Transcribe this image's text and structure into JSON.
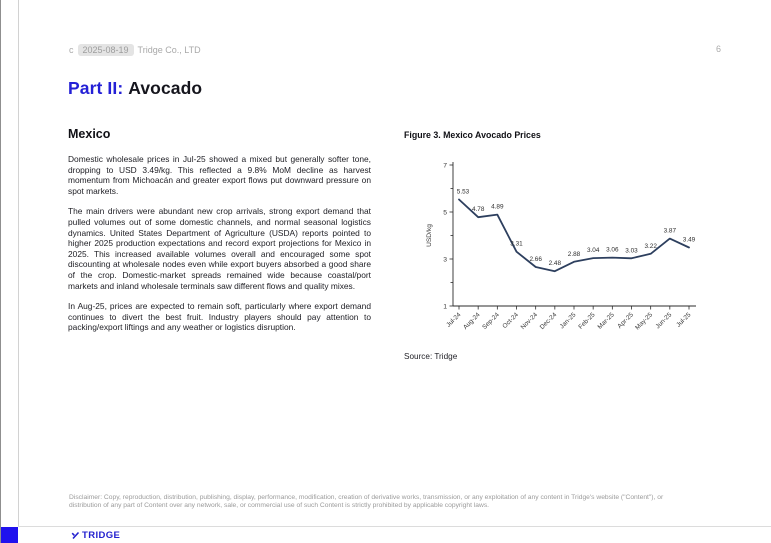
{
  "header": {
    "copyright_prefix": "c",
    "date": "2025-08-19",
    "company": "Tridge Co., LTD",
    "page_number": "6"
  },
  "title": {
    "part": "Part II:",
    "topic": "Avocado"
  },
  "section": {
    "heading": "Mexico",
    "paragraphs": [
      "Domestic wholesale prices in Jul-25 showed a mixed but generally softer tone, dropping to USD 3.49/kg. This reflected a 9.8% MoM decline as harvest momentum from Michoacán and greater export flows put downward pressure on spot markets.",
      "The main drivers were abundant new crop arrivals, strong export demand that pulled volumes out of some domestic channels, and normal seasonal logistics dynamics. United States Department of Agriculture (USDA) reports pointed to higher 2025 production expectations and record export projections for Mexico in 2025. This increased available volumes overall and encouraged some spot discounting at wholesale nodes even while export buyers absorbed a good share of the crop. Domestic-market spreads remained wide because coastal/port markets and inland wholesale terminals saw different flows and quality mixes.",
      "In Aug-25, prices are expected to remain soft, particularly where export demand continues to divert the best fruit. Industry players should pay attention to packing/export liftings and any weather or logistics disruption."
    ]
  },
  "figure": {
    "title": "Figure 3. Mexico Avocado Prices",
    "source": "Source: Tridge"
  },
  "chart_data": {
    "type": "line",
    "title": "Figure 3. Mexico Avocado Prices",
    "categories": [
      "Jul-24",
      "Aug-24",
      "Sep-24",
      "Oct-24",
      "Nov-24",
      "Dec-24",
      "Jan-25",
      "Feb-25",
      "Mar-25",
      "Apr-25",
      "May-25",
      "Jun-25",
      "Jul-25"
    ],
    "values": [
      5.53,
      4.78,
      4.89,
      3.31,
      2.66,
      2.48,
      2.88,
      3.04,
      3.06,
      3.03,
      3.22,
      3.87,
      3.49
    ],
    "xlabel": "",
    "ylabel": "USD/kg",
    "ylim": [
      1,
      7
    ],
    "ytick_labels": [
      1,
      3,
      5,
      7
    ],
    "grid": false,
    "legend": "none",
    "data_labels": true,
    "line_color": "#2d3f5e"
  },
  "disclaimer": "Disclaimer: Copy, reproduction, distribution, publishing, display, performance, modification, creation of derivative works, transmission, or any exploitation of any content in Tridge's website (\"Content\"), or distribution of any part of Content over any network, sale, or commercial use of such Content is strictly prohibited by applicable copyright laws.",
  "footer": {
    "logo_text": "TRIDGE"
  },
  "colors": {
    "accent_blue": "#2420d6",
    "chart_line": "#2d3f5e",
    "footer_square": "#2012ee",
    "logo_blue": "#2320cf"
  }
}
